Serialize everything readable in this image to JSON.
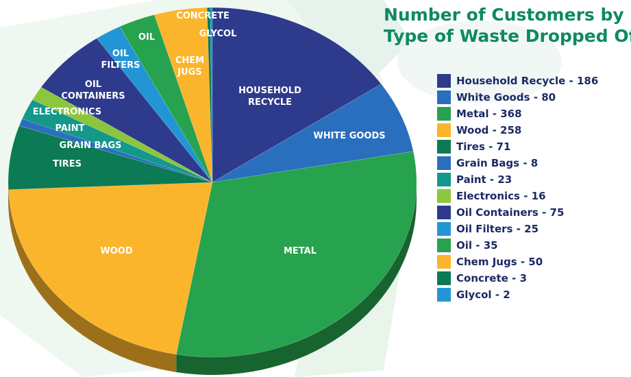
{
  "title_line1": "Number of Customers by",
  "title_line2": "Type of Waste Dropped Off",
  "chart_data": {
    "type": "pie",
    "slices": [
      {
        "label": "HOUSEHOLD RECYCLE",
        "legend": "Household Recycle - 186",
        "value": 186,
        "color": "#2e3a8c"
      },
      {
        "label": "WHITE GOODS",
        "legend": "White Goods - 80",
        "value": 80,
        "color": "#2a6fbd"
      },
      {
        "label": "METAL",
        "legend": "Metal - 368",
        "value": 368,
        "color": "#27a24e"
      },
      {
        "label": "WOOD",
        "legend": "Wood - 258",
        "value": 258,
        "color": "#fbb52c"
      },
      {
        "label": "TIRES",
        "legend": "Tires - 71",
        "value": 71,
        "color": "#0b7a55"
      },
      {
        "label": "GRAIN BAGS",
        "legend": "Grain Bags - 8",
        "value": 8,
        "color": "#2a6fbd"
      },
      {
        "label": "PAINT",
        "legend": "Paint - 23",
        "value": 23,
        "color": "#13988a"
      },
      {
        "label": "ELECTRONICS",
        "legend": "Electronics - 16",
        "value": 16,
        "color": "#8cc63e"
      },
      {
        "label": "OIL CONTAINERS",
        "legend": "Oil Containers - 75",
        "value": 75,
        "color": "#2e3a8c"
      },
      {
        "label": "OIL FILTERS",
        "legend": "Oil Filters - 25",
        "value": 25,
        "color": "#2296d4"
      },
      {
        "label": "OIL",
        "legend": "Oil - 35",
        "value": 35,
        "color": "#27a24e"
      },
      {
        "label": "CHEM JUGS",
        "legend": "Chem Jugs - 50",
        "value": 50,
        "color": "#fbb52c"
      },
      {
        "label": "CONCRETE",
        "legend": "Concrete - 3",
        "value": 3,
        "color": "#0b7a55"
      },
      {
        "label": "GLYCOL",
        "legend": "Glycol - 2",
        "value": 2,
        "color": "#2296d4"
      }
    ]
  }
}
